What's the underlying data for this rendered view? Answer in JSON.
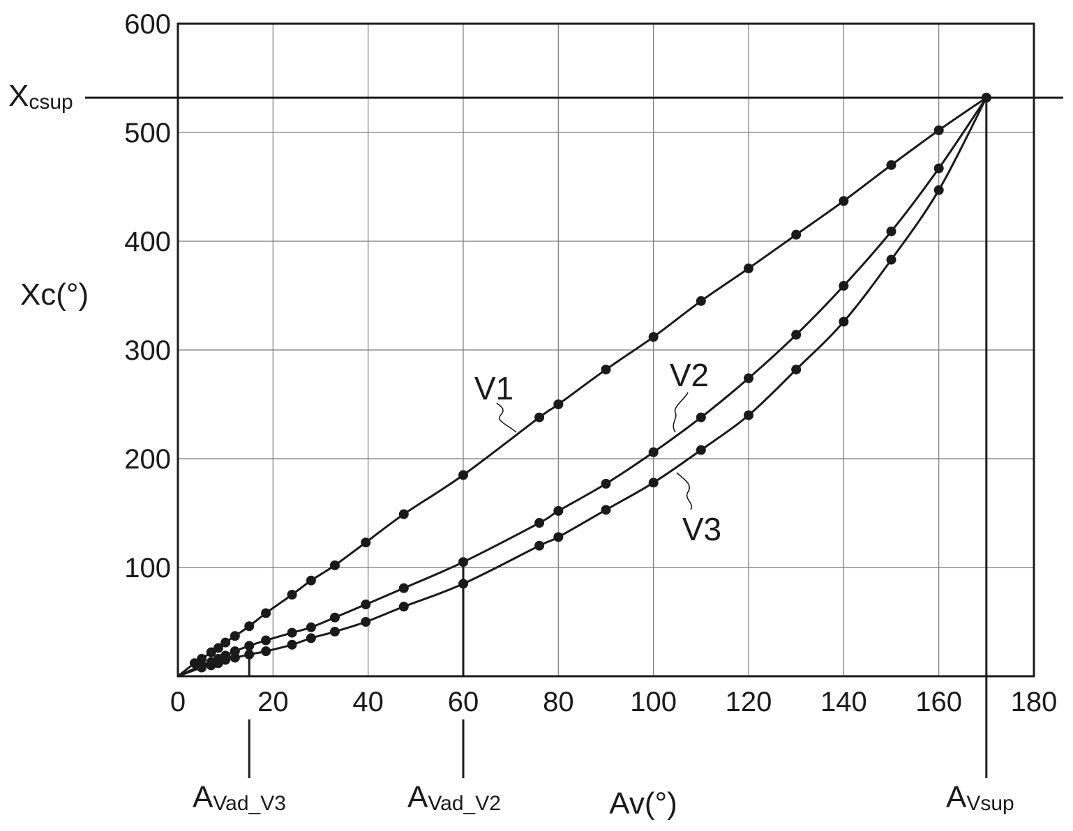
{
  "chart_data": {
    "type": "line",
    "title": "",
    "xlabel": "Av(°)",
    "ylabel": "Xc(°)",
    "xlim": [
      0,
      180
    ],
    "ylim": [
      0,
      600
    ],
    "grid": true,
    "x_ticks": [
      "0",
      "20",
      "40",
      "60",
      "80",
      "100",
      "120",
      "140",
      "160",
      "180"
    ],
    "y_ticks": [
      "100",
      "200",
      "300",
      "400",
      "500",
      "600"
    ],
    "series": [
      {
        "name": "V1",
        "x": [
          0,
          3.5,
          5,
          7,
          8.5,
          10,
          12,
          15,
          18.5,
          24,
          28,
          33,
          39.5,
          47.5,
          60,
          76,
          80,
          90,
          100,
          110,
          120,
          130,
          140,
          150,
          160,
          170
        ],
        "y": [
          0,
          12,
          16,
          22,
          26,
          31,
          37,
          46,
          58,
          75,
          88,
          102,
          123,
          149,
          185,
          238,
          250,
          282,
          312,
          345,
          375,
          406,
          437,
          470,
          502,
          532
        ]
      },
      {
        "name": "V2",
        "x": [
          0,
          5,
          7,
          8.5,
          10,
          12,
          15,
          18.5,
          24,
          28,
          33,
          39.5,
          47.5,
          60,
          76,
          80,
          90,
          100,
          110,
          120,
          130,
          140,
          150,
          160,
          170
        ],
        "y": [
          0,
          10,
          13,
          16,
          19,
          23,
          28,
          33,
          40,
          45,
          54,
          66,
          81,
          105,
          141,
          152,
          177,
          206,
          238,
          274,
          314,
          359,
          409,
          467,
          532
        ]
      },
      {
        "name": "V3",
        "x": [
          0,
          5,
          7,
          8.5,
          10,
          12,
          15,
          18.5,
          24,
          28,
          33,
          39.5,
          47.5,
          60,
          76,
          80,
          90,
          100,
          110,
          120,
          130,
          140,
          150,
          160,
          170
        ],
        "y": [
          0,
          8,
          10,
          12,
          15,
          17,
          20,
          23,
          29,
          35,
          41,
          50,
          64,
          85,
          120,
          128,
          153,
          178,
          208,
          240,
          282,
          326,
          383,
          447,
          532
        ]
      }
    ],
    "reference_lines": {
      "horizontal": {
        "label_main": "X",
        "label_sub": "csup",
        "y": 532
      },
      "vertical": [
        {
          "label_main": "A",
          "label_sub": "Vad_V3",
          "x": 15
        },
        {
          "label_main": "A",
          "label_sub": "Vad_V2",
          "x": 60
        },
        {
          "label_main": "A",
          "label_sub": "Vsup",
          "x": 170
        }
      ]
    },
    "colors": {
      "line": "#1a1a1a",
      "grid": "#7a7a7a",
      "background": "#ffffff"
    }
  }
}
